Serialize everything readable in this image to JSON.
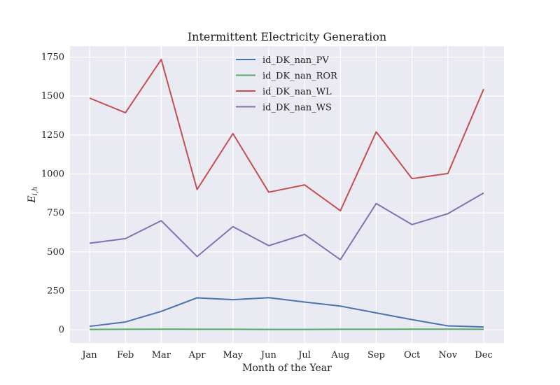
{
  "chart_data": {
    "type": "line",
    "title": "Intermittent Electricity Generation",
    "xlabel": "Month of the Year",
    "ylabel": "E_{i,h}",
    "categories": [
      "Jan",
      "Feb",
      "Mar",
      "Apr",
      "May",
      "Jun",
      "Jul",
      "Aug",
      "Sep",
      "Oct",
      "Nov",
      "Dec"
    ],
    "ylim": [
      -85,
      1820
    ],
    "yticks": [
      0,
      250,
      500,
      750,
      1000,
      1250,
      1500,
      1750
    ],
    "grid": true,
    "legend_position": "top-center",
    "series": [
      {
        "name": "id_DK_nan_PV",
        "color": "#4c72b0",
        "values": [
          22,
          50,
          118,
          205,
          193,
          206,
          178,
          152,
          108,
          65,
          25,
          18
        ]
      },
      {
        "name": "id_DK_nan_ROR",
        "color": "#55a868",
        "values": [
          2,
          3,
          4,
          3,
          3,
          2,
          2,
          3,
          3,
          4,
          4,
          3
        ]
      },
      {
        "name": "id_DK_nan_WL",
        "color": "#c44e52",
        "values": [
          1487,
          1393,
          1735,
          900,
          1259,
          883,
          930,
          764,
          1270,
          970,
          1003,
          1545
        ]
      },
      {
        "name": "id_DK_nan_WS",
        "color": "#8172b2",
        "values": [
          555,
          585,
          700,
          470,
          662,
          540,
          612,
          450,
          810,
          675,
          745,
          878
        ]
      }
    ]
  }
}
